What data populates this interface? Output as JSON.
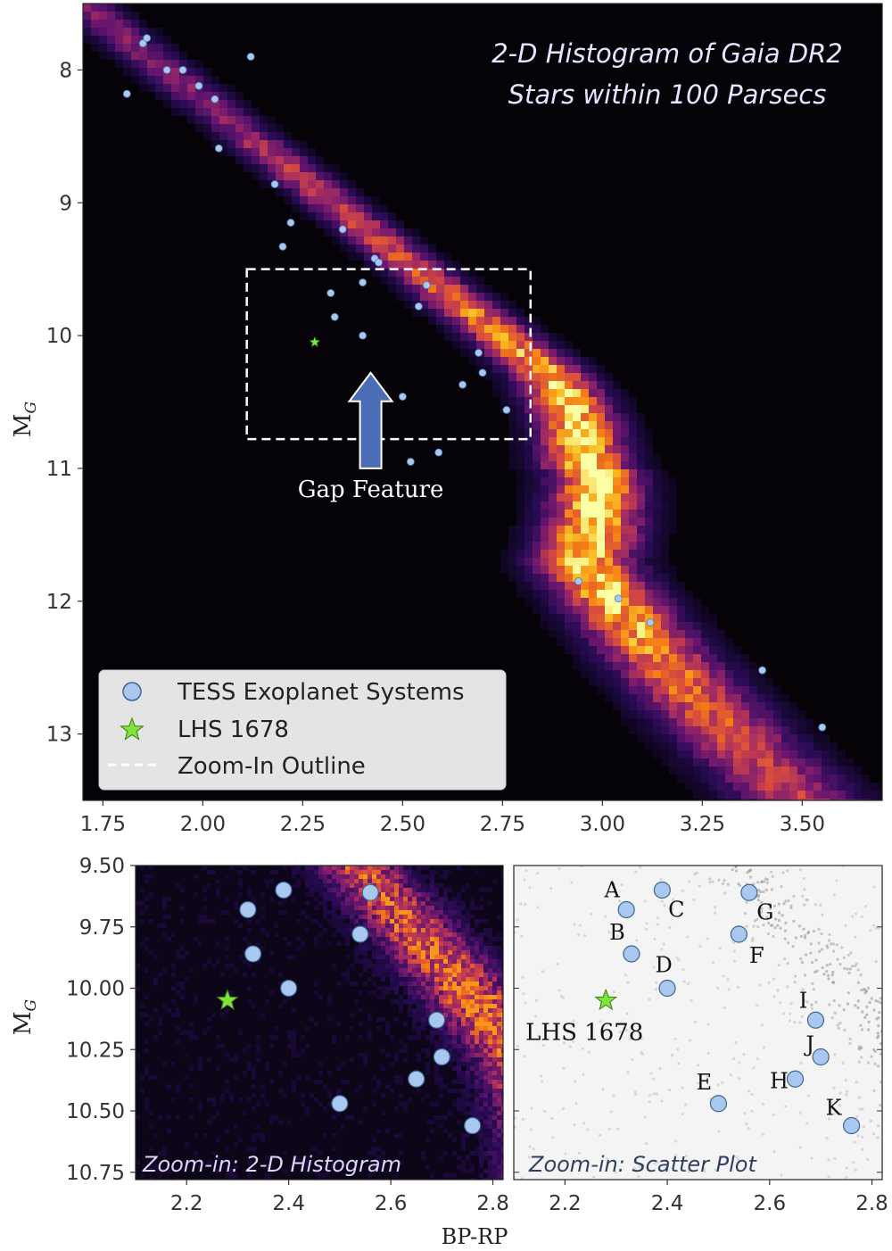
{
  "chart_data": [
    {
      "id": "main",
      "type": "heatmap",
      "title_lines": [
        "2-D Histogram of Gaia DR2",
        "Stars within 100 Parsecs"
      ],
      "ylabel": "M",
      "ylabel_sub": "G",
      "xlim": [
        1.7,
        3.7
      ],
      "ylim": [
        13.5,
        7.5
      ],
      "x_ticks": [
        "1.75",
        "2.00",
        "2.25",
        "2.50",
        "2.75",
        "3.00",
        "3.25",
        "3.50"
      ],
      "y_ticks": [
        "8",
        "9",
        "10",
        "11",
        "12",
        "13"
      ],
      "colormap": "inferno",
      "zoom_outline": {
        "x0": 2.11,
        "x1": 2.82,
        "y0": 9.5,
        "y1": 10.78
      },
      "gap_annotation": {
        "text": "Gap Feature",
        "x": 2.42,
        "y_tip": 10.28,
        "y_tail": 11.0,
        "color": "#4a6db5"
      },
      "tess_points": [
        [
          1.85,
          7.8
        ],
        [
          1.86,
          7.76
        ],
        [
          1.81,
          8.18
        ],
        [
          1.91,
          8.0
        ],
        [
          1.95,
          8.0
        ],
        [
          1.99,
          8.12
        ],
        [
          2.03,
          8.22
        ],
        [
          2.12,
          7.9
        ],
        [
          2.04,
          8.59
        ],
        [
          2.18,
          8.86
        ],
        [
          2.2,
          9.33
        ],
        [
          2.22,
          9.15
        ],
        [
          2.35,
          9.2
        ],
        [
          2.43,
          9.42
        ],
        [
          2.44,
          9.45
        ],
        [
          2.32,
          9.68
        ],
        [
          2.33,
          9.86
        ],
        [
          2.4,
          9.6
        ],
        [
          2.4,
          10.0
        ],
        [
          2.56,
          9.62
        ],
        [
          2.54,
          9.78
        ],
        [
          2.69,
          10.13
        ],
        [
          2.7,
          10.28
        ],
        [
          2.65,
          10.37
        ],
        [
          2.5,
          10.46
        ],
        [
          2.76,
          10.56
        ],
        [
          2.52,
          10.95
        ],
        [
          2.59,
          10.88
        ],
        [
          2.94,
          11.85
        ],
        [
          3.04,
          11.98
        ],
        [
          3.12,
          12.16
        ],
        [
          3.4,
          12.52
        ],
        [
          3.55,
          12.95
        ]
      ],
      "lhs_1678": [
        2.28,
        10.05
      ],
      "legend": {
        "position": "lower-left",
        "entries": [
          "TESS Exoplanet Systems",
          "LHS 1678",
          "Zoom-In Outline"
        ]
      },
      "colors": {
        "tess": "#a9c8ef",
        "tess_edge": "#3c6491",
        "star": "#7ee43c",
        "outline": "#ffffff"
      }
    },
    {
      "id": "zoom_hist",
      "type": "heatmap",
      "label": "Zoom-in: 2-D Histogram",
      "xlabel": "",
      "ylabel": "M",
      "ylabel_sub": "G",
      "xlim": [
        2.1,
        2.82
      ],
      "ylim": [
        10.78,
        9.5
      ],
      "x_ticks": [
        "2.2",
        "2.4",
        "2.6",
        "2.8"
      ],
      "y_ticks": [
        "9.50",
        "9.75",
        "10.00",
        "10.25",
        "10.50",
        "10.75"
      ],
      "colormap": "inferno"
    },
    {
      "id": "zoom_scatter",
      "type": "scatter",
      "label": "Zoom-in: Scatter Plot",
      "xlim": [
        2.1,
        2.82
      ],
      "ylim": [
        10.78,
        9.5
      ],
      "x_ticks": [
        "2.2",
        "2.4",
        "2.6",
        "2.8"
      ],
      "shared_xlabel": "BP-RP",
      "lhs_label": "LHS 1678",
      "labeled_points": [
        {
          "label": "A",
          "x": 2.32,
          "y": 9.68
        },
        {
          "label": "B",
          "x": 2.33,
          "y": 9.86
        },
        {
          "label": "C",
          "x": 2.39,
          "y": 9.6
        },
        {
          "label": "D",
          "x": 2.4,
          "y": 10.0
        },
        {
          "label": "E",
          "x": 2.5,
          "y": 10.47
        },
        {
          "label": "F",
          "x": 2.54,
          "y": 9.78
        },
        {
          "label": "G",
          "x": 2.56,
          "y": 9.61
        },
        {
          "label": "H",
          "x": 2.65,
          "y": 10.37
        },
        {
          "label": "I",
          "x": 2.69,
          "y": 10.13
        },
        {
          "label": "J",
          "x": 2.7,
          "y": 10.28
        },
        {
          "label": "K",
          "x": 2.76,
          "y": 10.56
        }
      ]
    }
  ]
}
